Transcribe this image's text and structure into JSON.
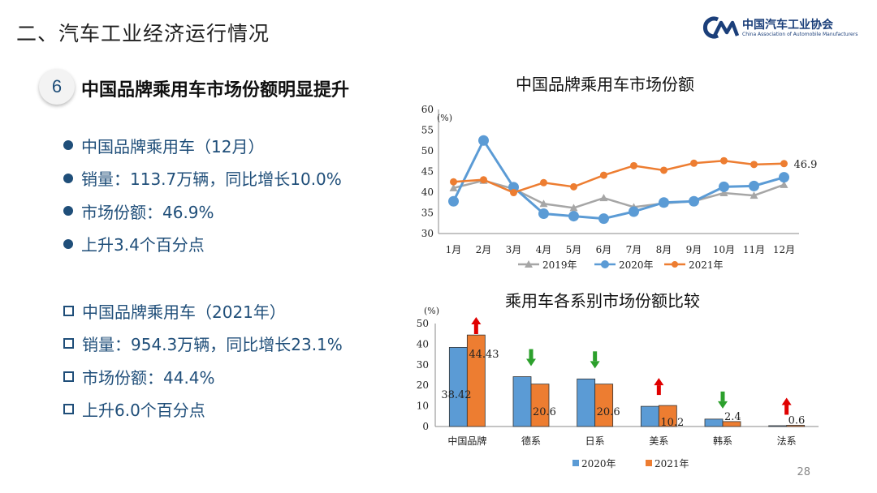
{
  "header": {
    "section_title": "二、汽车工业经济运行情况"
  },
  "logo": {
    "name_cn": "中国汽车工业协会",
    "name_en": "China Association of Automobile Manufacturers"
  },
  "slide": {
    "number": "6",
    "headline": "中国品牌乘用车市场份额明显提升",
    "page": "28"
  },
  "december": [
    "中国品牌乘用车（12月）",
    "销量：113.7万辆，同比增长10.0%",
    "市场份额：46.9%",
    "上升3.4个百分点"
  ],
  "full_year": [
    "中国品牌乘用车（2021年）",
    "销量：954.3万辆，同比增长23.1%",
    "市场份额：44.4%",
    "上升6.0个百分点"
  ],
  "colors": {
    "text_blue": "#1f4e79",
    "series_2019": "#a6a6a6",
    "series_2020": "#5b9bd5",
    "series_2021": "#ed7d31",
    "arrow_up": "#e00000",
    "arrow_down": "#2ca02c"
  },
  "chart_data": [
    {
      "type": "line",
      "title": "中国品牌乘用车市场份额",
      "ylabel": "(%)",
      "ylim": [
        30,
        60
      ],
      "yticks": [
        "30",
        "35",
        "40",
        "45",
        "50",
        "55",
        "60"
      ],
      "categories": [
        "1月",
        "2月",
        "3月",
        "4月",
        "5月",
        "6月",
        "7月",
        "8月",
        "9月",
        "10月",
        "11月",
        "12月"
      ],
      "series": [
        {
          "name": "2019年",
          "values": [
            41.0,
            42.8,
            40.8,
            37.2,
            36.2,
            38.6,
            36.4,
            37.3,
            37.8,
            39.8,
            39.2,
            41.8
          ]
        },
        {
          "name": "2020年",
          "values": [
            37.8,
            52.5,
            41.2,
            34.8,
            34.2,
            33.6,
            35.3,
            37.5,
            37.8,
            41.3,
            41.5,
            43.6
          ]
        },
        {
          "name": "2021年",
          "values": [
            42.5,
            43.0,
            39.9,
            42.3,
            41.3,
            44.1,
            46.4,
            45.3,
            47.0,
            47.6,
            46.7,
            46.9
          ]
        }
      ],
      "end_label": "46.9",
      "legend": "bottom",
      "grid": false
    },
    {
      "type": "bar",
      "title": "乘用车各系别市场份额比较",
      "ylabel": "(%)",
      "ylim": [
        0,
        50
      ],
      "yticks": [
        "0",
        "10",
        "20",
        "30",
        "40",
        "50"
      ],
      "categories": [
        "中国品牌",
        "德系",
        "日系",
        "美系",
        "韩系",
        "法系"
      ],
      "series": [
        {
          "name": "2020年",
          "values": [
            38.42,
            24.2,
            23.1,
            9.8,
            3.6,
            0.4
          ]
        },
        {
          "name": "2021年",
          "values": [
            44.43,
            20.6,
            20.6,
            10.2,
            2.4,
            0.6
          ]
        }
      ],
      "data_labels": [
        "38.42",
        "44.43",
        "20.6",
        "20.6",
        "10.2",
        "2.4",
        "0.6"
      ],
      "trend": [
        "up",
        "down",
        "down",
        "up",
        "down",
        "up"
      ],
      "legend": "bottom",
      "grid": false
    }
  ]
}
